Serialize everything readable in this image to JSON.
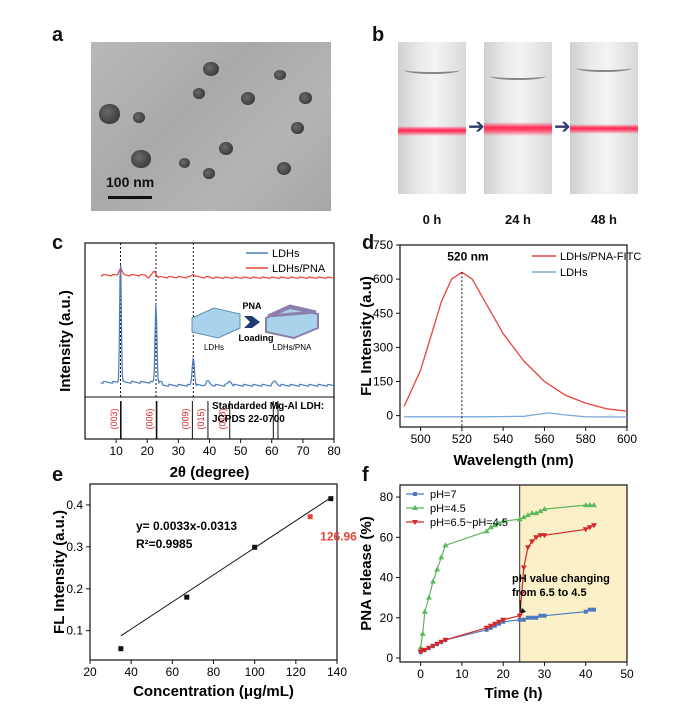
{
  "panel_labels": {
    "a": "a",
    "b": "b",
    "c": "c",
    "d": "d",
    "e": "e",
    "f": "f"
  },
  "panel_a": {
    "scale_bar": "100 nm"
  },
  "panel_b": {
    "times": [
      "0 h",
      "24 h",
      "48 h"
    ]
  },
  "chart_data": [
    {
      "id": "c",
      "type": "line",
      "xlabel": "2θ (degree)",
      "ylabel": "Intensity (a.u.)",
      "xlim": [
        0,
        80
      ],
      "xticks": [
        10,
        20,
        30,
        40,
        50,
        60,
        70,
        80
      ],
      "legend": [
        "LDHs",
        "LDHs/PNA"
      ],
      "legend_position": "top-right",
      "colors": {
        "LDHs": "#4a7bbf",
        "LDHs/PNA": "#e8443a",
        "standard": "#d62728"
      },
      "peaks_2theta": [
        11.4,
        22.8,
        34.8
      ],
      "standard_title_1": "Standarded  Mg-Al LDH:",
      "standard_title_2": "JCPDS 22-0700",
      "standard_peaks": [
        {
          "x": 11.5,
          "label": "(003)"
        },
        {
          "x": 23.0,
          "label": "(006)"
        },
        {
          "x": 34.5,
          "label": "(009)"
        },
        {
          "x": 39.5,
          "label": "(015)"
        },
        {
          "x": 46.5,
          "label": "(018)"
        },
        {
          "x": 60.5,
          "label": ""
        },
        {
          "x": 62.0,
          "label": ""
        }
      ],
      "inset": {
        "left": "LDHs",
        "middle_top": "PNA",
        "middle_bottom": "Loading",
        "right": "LDHs/PNA"
      }
    },
    {
      "id": "d",
      "type": "line",
      "xlabel": "Wavelength (nm)",
      "ylabel": "FL Intensity (a.u)",
      "xlim": [
        490,
        600
      ],
      "ylim": [
        -50,
        750
      ],
      "xticks": [
        500,
        520,
        540,
        560,
        580,
        600
      ],
      "yticks": [
        0,
        150,
        300,
        450,
        600,
        750
      ],
      "annotation": "520 nm",
      "series": [
        {
          "name": "LDHs/PNA-FITC",
          "color": "#e8443a",
          "x": [
            492,
            500,
            505,
            510,
            515,
            520,
            525,
            530,
            540,
            550,
            560,
            570,
            580,
            590,
            600
          ],
          "y": [
            40,
            200,
            350,
            500,
            600,
            630,
            600,
            520,
            360,
            240,
            150,
            90,
            55,
            30,
            20
          ]
        },
        {
          "name": "LDHs",
          "color": "#7aa9d8",
          "x": [
            492,
            510,
            530,
            550,
            556,
            562,
            568,
            580,
            600
          ],
          "y": [
            -5,
            -5,
            -5,
            -3,
            5,
            12,
            5,
            -5,
            -6
          ]
        }
      ],
      "legend_position": "top-right"
    },
    {
      "id": "e",
      "type": "scatter",
      "xlabel": "Concentration (μg/mL)",
      "ylabel": "FL Intensity (a.u.)",
      "xlim": [
        20,
        140
      ],
      "ylim": [
        0.03,
        0.45
      ],
      "xticks": [
        20,
        40,
        60,
        80,
        100,
        120,
        140
      ],
      "yticks": [
        0.1,
        0.2,
        0.3,
        0.4
      ],
      "equation": "y= 0.0033x-0.0313",
      "r2": "R²=0.9985",
      "highlight_label": "126.96",
      "points": [
        {
          "x": 35,
          "y": 0.057
        },
        {
          "x": 67,
          "y": 0.18
        },
        {
          "x": 100,
          "y": 0.299
        },
        {
          "x": 137,
          "y": 0.415
        }
      ],
      "highlight_point": {
        "x": 126.96,
        "y": 0.372
      },
      "fit": {
        "slope": 0.0033,
        "intercept": -0.0313,
        "x": [
          35,
          138
        ]
      },
      "colors": {
        "points": "#111111",
        "line": "#111111",
        "highlight": "#e8443a"
      }
    },
    {
      "id": "f",
      "type": "line",
      "xlabel": "Time (h)",
      "ylabel": "PNA release (%)",
      "xlim": [
        -5,
        50
      ],
      "ylim": [
        -2,
        86
      ],
      "xticks": [
        0,
        10,
        20,
        30,
        40,
        50
      ],
      "yticks": [
        0,
        20,
        40,
        60,
        80
      ],
      "shaded_from_x": 24,
      "shade_color": "#fbf0c8",
      "annotation_1": "pH value changing",
      "annotation_2": "from 6.5 to 4.5",
      "legend_position": "top-left",
      "series": [
        {
          "name": "pH=7",
          "color": "#4a7bbf",
          "marker": "square",
          "x": [
            0,
            0.5,
            1,
            2,
            3,
            4,
            5,
            6,
            16,
            17,
            18,
            19,
            20,
            24,
            25,
            26,
            27,
            28,
            29,
            30,
            40,
            41,
            42
          ],
          "y": [
            3,
            4,
            4,
            5,
            6,
            7,
            8,
            9,
            14,
            15,
            16,
            17,
            18,
            19,
            19,
            20,
            20,
            20,
            21,
            21,
            23,
            24,
            24
          ]
        },
        {
          "name": "pH=4.5",
          "color": "#5cb85c",
          "marker": "triangle",
          "x": [
            0,
            0.5,
            1,
            2,
            3,
            4,
            5,
            6,
            16,
            17,
            18,
            19,
            20,
            24,
            25,
            26,
            27,
            28,
            29,
            30,
            40,
            41,
            42
          ],
          "y": [
            5,
            12,
            23,
            30,
            38,
            44,
            50,
            56,
            63,
            65,
            66,
            67,
            68,
            69,
            70,
            71,
            72,
            72,
            73,
            74,
            76,
            76,
            76
          ]
        },
        {
          "name": "pH=6.5~pH=4.5",
          "color": "#d62728",
          "marker": "triangle-down",
          "x": [
            0,
            0.5,
            1,
            2,
            3,
            4,
            5,
            6,
            16,
            17,
            18,
            19,
            20,
            24,
            24.5,
            25,
            26,
            27,
            28,
            29,
            30,
            40,
            41,
            42
          ],
          "y": [
            3,
            4,
            4,
            5,
            6,
            7,
            8,
            9,
            15,
            16,
            17,
            18,
            19,
            21,
            32,
            45,
            55,
            58,
            60,
            61,
            61,
            64,
            65,
            66
          ]
        }
      ]
    }
  ]
}
